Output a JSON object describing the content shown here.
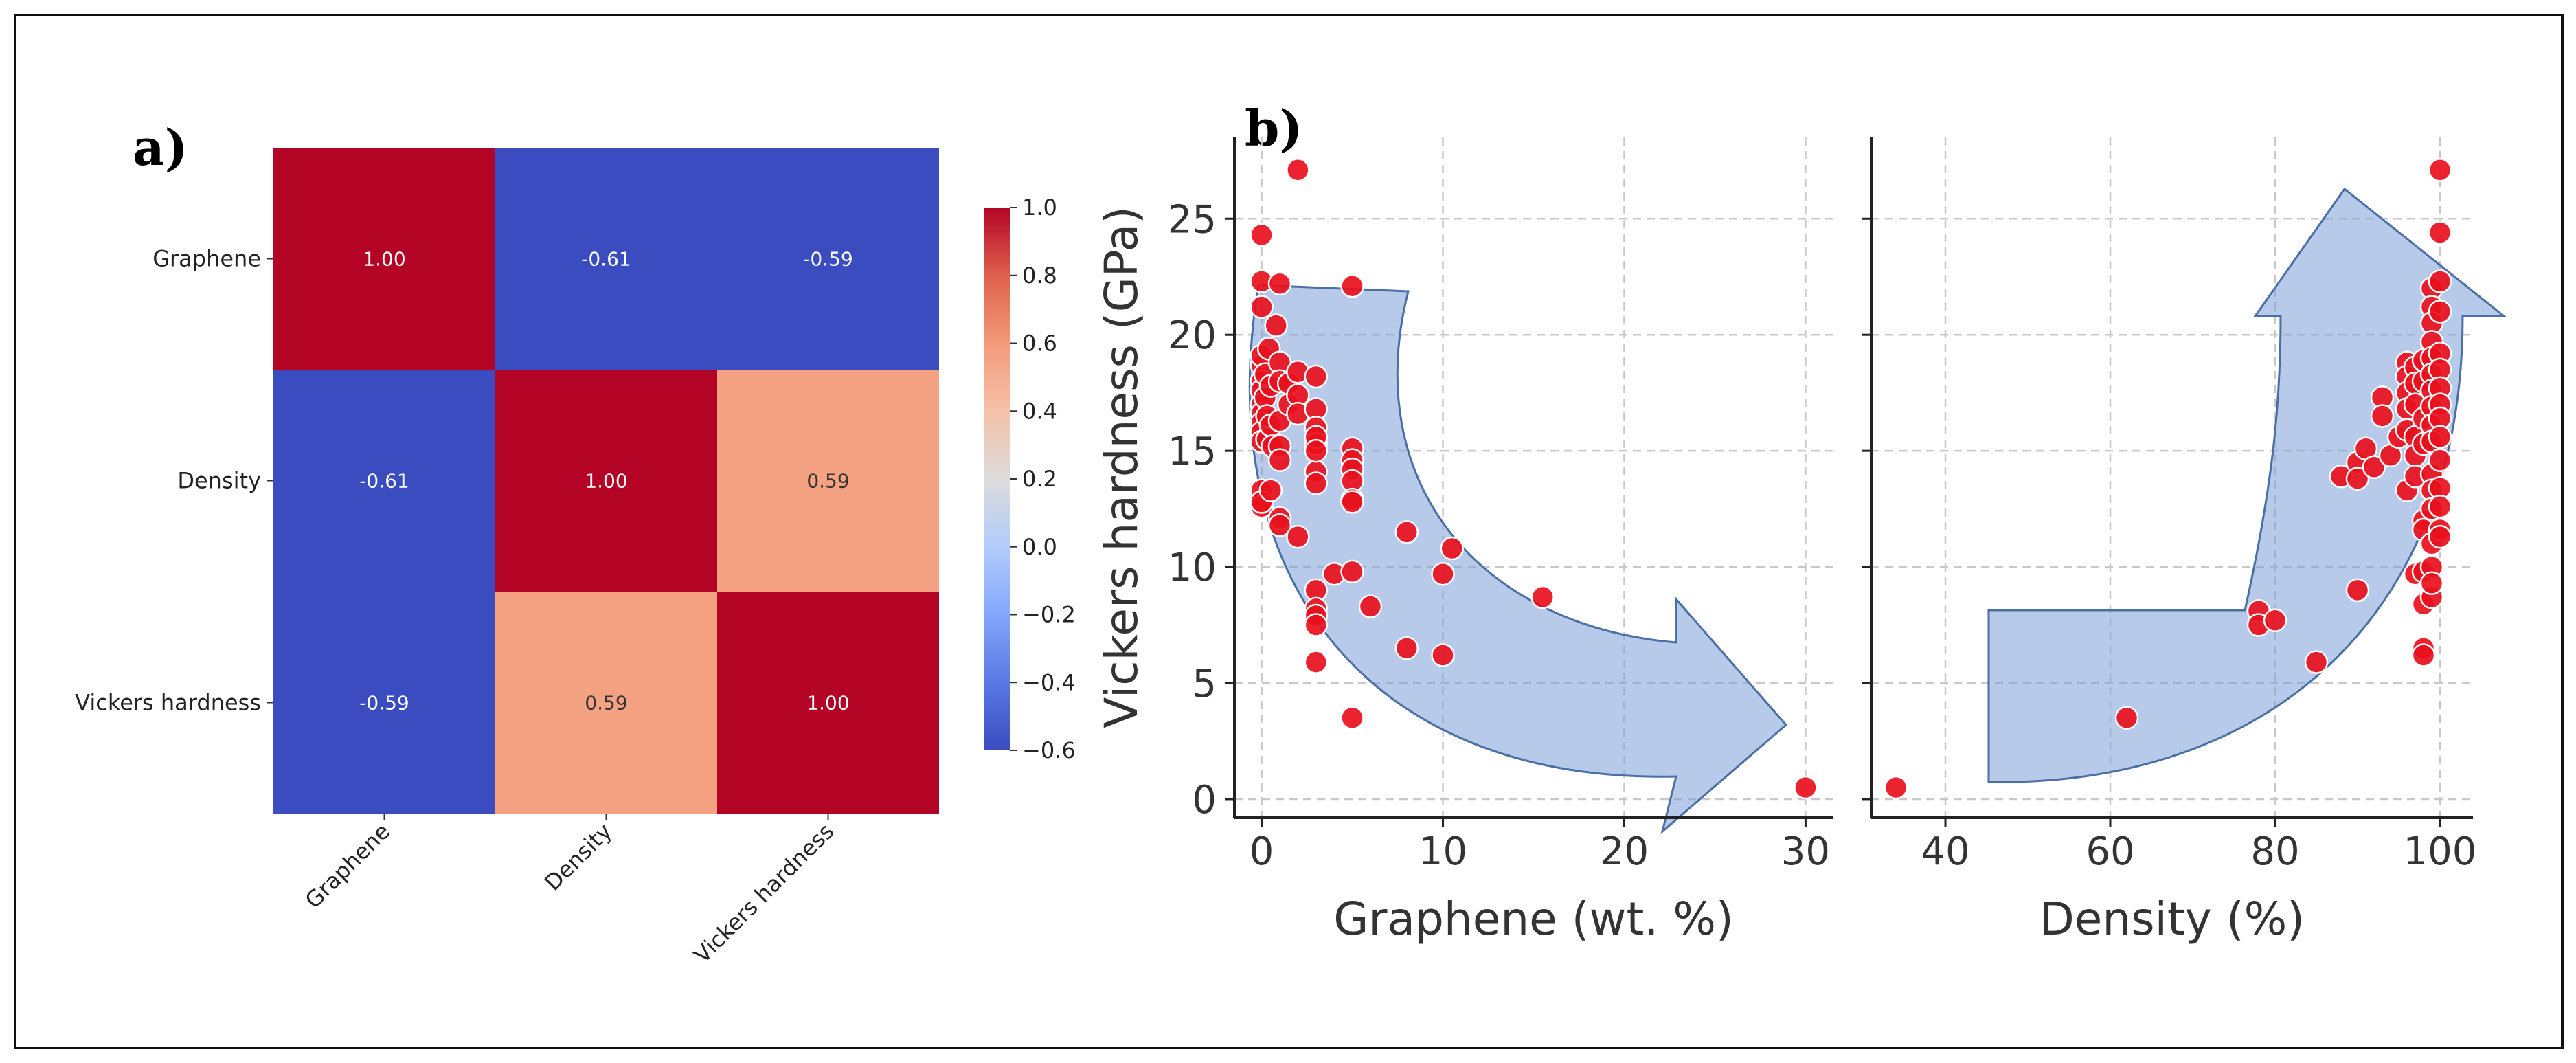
{
  "panel_labels": {
    "a": "a)",
    "b": "b)"
  },
  "colors": {
    "heat_high": "#b40426",
    "heat_low": "#3b4cc0",
    "heat_mid": "#f5a283",
    "point_fill": "#e8101d",
    "point_edge": "#ffffff",
    "arrow_fill": "#7d9fd8",
    "arrow_edge": "#4a6fa5",
    "grid": "#c8c8c8",
    "frame": "#222222"
  },
  "chart_data": [
    {
      "id": "a",
      "type": "heatmap",
      "title": "",
      "row_labels": [
        "Graphene",
        "Density",
        "Vickers hardness"
      ],
      "col_labels": [
        "Graphene",
        "Density",
        "Vickers hardness"
      ],
      "matrix": [
        [
          1.0,
          -0.61,
          -0.59
        ],
        [
          -0.61,
          1.0,
          0.59
        ],
        [
          -0.59,
          0.59,
          1.0
        ]
      ],
      "cell_text": [
        [
          "1.00",
          "-0.61",
          "-0.59"
        ],
        [
          "-0.61",
          "1.00",
          "0.59"
        ],
        [
          "-0.59",
          "0.59",
          "1.00"
        ]
      ],
      "colorbar": {
        "range": [
          -0.6,
          1.0
        ],
        "ticks": [
          -0.6,
          -0.4,
          -0.2,
          0.0,
          0.2,
          0.4,
          0.6,
          0.8,
          1.0
        ],
        "tick_labels": [
          "−0.6",
          "−0.4",
          "−0.2",
          "0.0",
          "0.2",
          "0.4",
          "0.6",
          "0.8",
          "1.0"
        ]
      }
    },
    {
      "id": "b-left",
      "type": "scatter",
      "xlabel": "Graphene (wt. %)",
      "ylabel": "Vickers hardness (GPa)",
      "xlim": [
        -1.5,
        31.5
      ],
      "ylim": [
        -0.8,
        28.5
      ],
      "xticks": [
        0,
        10,
        20,
        30
      ],
      "yticks": [
        0,
        5,
        10,
        15,
        20,
        25
      ],
      "grid": true,
      "annotation": "decreasing-trend-arrow",
      "x": [
        0,
        0,
        0,
        0,
        0,
        0,
        0,
        0,
        0,
        0,
        0,
        0,
        0,
        0,
        0,
        0.2,
        0.2,
        0.3,
        0.3,
        0.4,
        0.5,
        0.5,
        0.5,
        0.6,
        0.8,
        1,
        1,
        1,
        1,
        1,
        1,
        1,
        1,
        1.5,
        1.5,
        2,
        2,
        2,
        2,
        2,
        3,
        3,
        3,
        3,
        3,
        3,
        3,
        3,
        3,
        3,
        3,
        3,
        3,
        4,
        5,
        5,
        5,
        5,
        5,
        5,
        5,
        5,
        5,
        6,
        8,
        8,
        10,
        10,
        10.5,
        15.5,
        30
      ],
      "y": [
        24.3,
        22.3,
        21.2,
        18.7,
        18.0,
        17.6,
        17.0,
        16.6,
        16.2,
        15.8,
        15.4,
        13.3,
        12.6,
        12.8,
        19.1,
        18.3,
        17.3,
        16.5,
        15.5,
        19.4,
        17.8,
        16.1,
        13.3,
        15.2,
        20.4,
        22.2,
        18.8,
        18.0,
        16.3,
        15.2,
        14.6,
        12.1,
        11.8,
        17.0,
        17.9,
        27.1,
        18.4,
        17.4,
        16.6,
        11.3,
        18.2,
        16.8,
        16.0,
        15.3,
        14.1,
        13.6,
        9.0,
        8.2,
        7.9,
        7.5,
        5.9,
        15.6,
        15.0,
        9.7,
        22.1,
        15.1,
        14.6,
        14.2,
        13.7,
        12.9,
        9.8,
        3.5,
        12.8,
        8.3,
        6.5,
        11.5,
        9.7,
        6.2,
        10.8,
        8.7,
        0.5
      ]
    },
    {
      "id": "b-right",
      "type": "scatter",
      "xlabel": "Density (%)",
      "ylabel": "",
      "xlim": [
        31,
        104
      ],
      "ylim": [
        -0.8,
        28.5
      ],
      "xticks": [
        40,
        60,
        80,
        100
      ],
      "yticks": [
        0,
        5,
        10,
        15,
        20,
        25
      ],
      "grid": true,
      "annotation": "increasing-trend-arrow",
      "x": [
        34,
        62,
        78,
        78,
        80,
        85,
        88,
        90,
        90,
        90,
        91,
        92,
        93,
        93,
        94,
        95,
        96,
        96,
        96,
        96,
        96,
        96,
        97,
        97,
        97,
        97,
        97,
        97,
        97,
        98,
        98,
        98,
        98,
        98,
        98,
        98,
        98,
        98,
        98,
        99,
        99,
        99,
        99,
        99,
        99,
        99,
        99,
        99,
        99,
        99,
        99,
        99,
        99,
        99,
        99,
        99,
        100,
        100,
        100,
        100,
        100,
        100,
        100,
        100,
        100,
        100,
        100,
        100,
        100,
        100,
        100
      ],
      "y": [
        0.5,
        3.5,
        8.1,
        7.5,
        7.7,
        5.9,
        13.9,
        14.5,
        13.8,
        9.0,
        15.1,
        14.3,
        17.3,
        16.5,
        14.8,
        15.6,
        18.8,
        18.2,
        17.5,
        16.8,
        15.9,
        13.3,
        18.6,
        17.9,
        17.0,
        15.6,
        14.8,
        13.9,
        9.7,
        18.9,
        18.0,
        16.4,
        15.3,
        12.0,
        9.8,
        8.4,
        6.5,
        6.2,
        11.6,
        22.0,
        21.2,
        20.5,
        19.7,
        19.0,
        18.3,
        17.6,
        16.9,
        16.1,
        15.4,
        14.0,
        13.3,
        12.5,
        11.0,
        10.0,
        8.7,
        9.3,
        27.1,
        24.4,
        22.3,
        21.0,
        19.2,
        18.5,
        17.7,
        17.0,
        16.4,
        15.6,
        14.6,
        13.4,
        12.6,
        11.6,
        11.3
      ]
    }
  ]
}
